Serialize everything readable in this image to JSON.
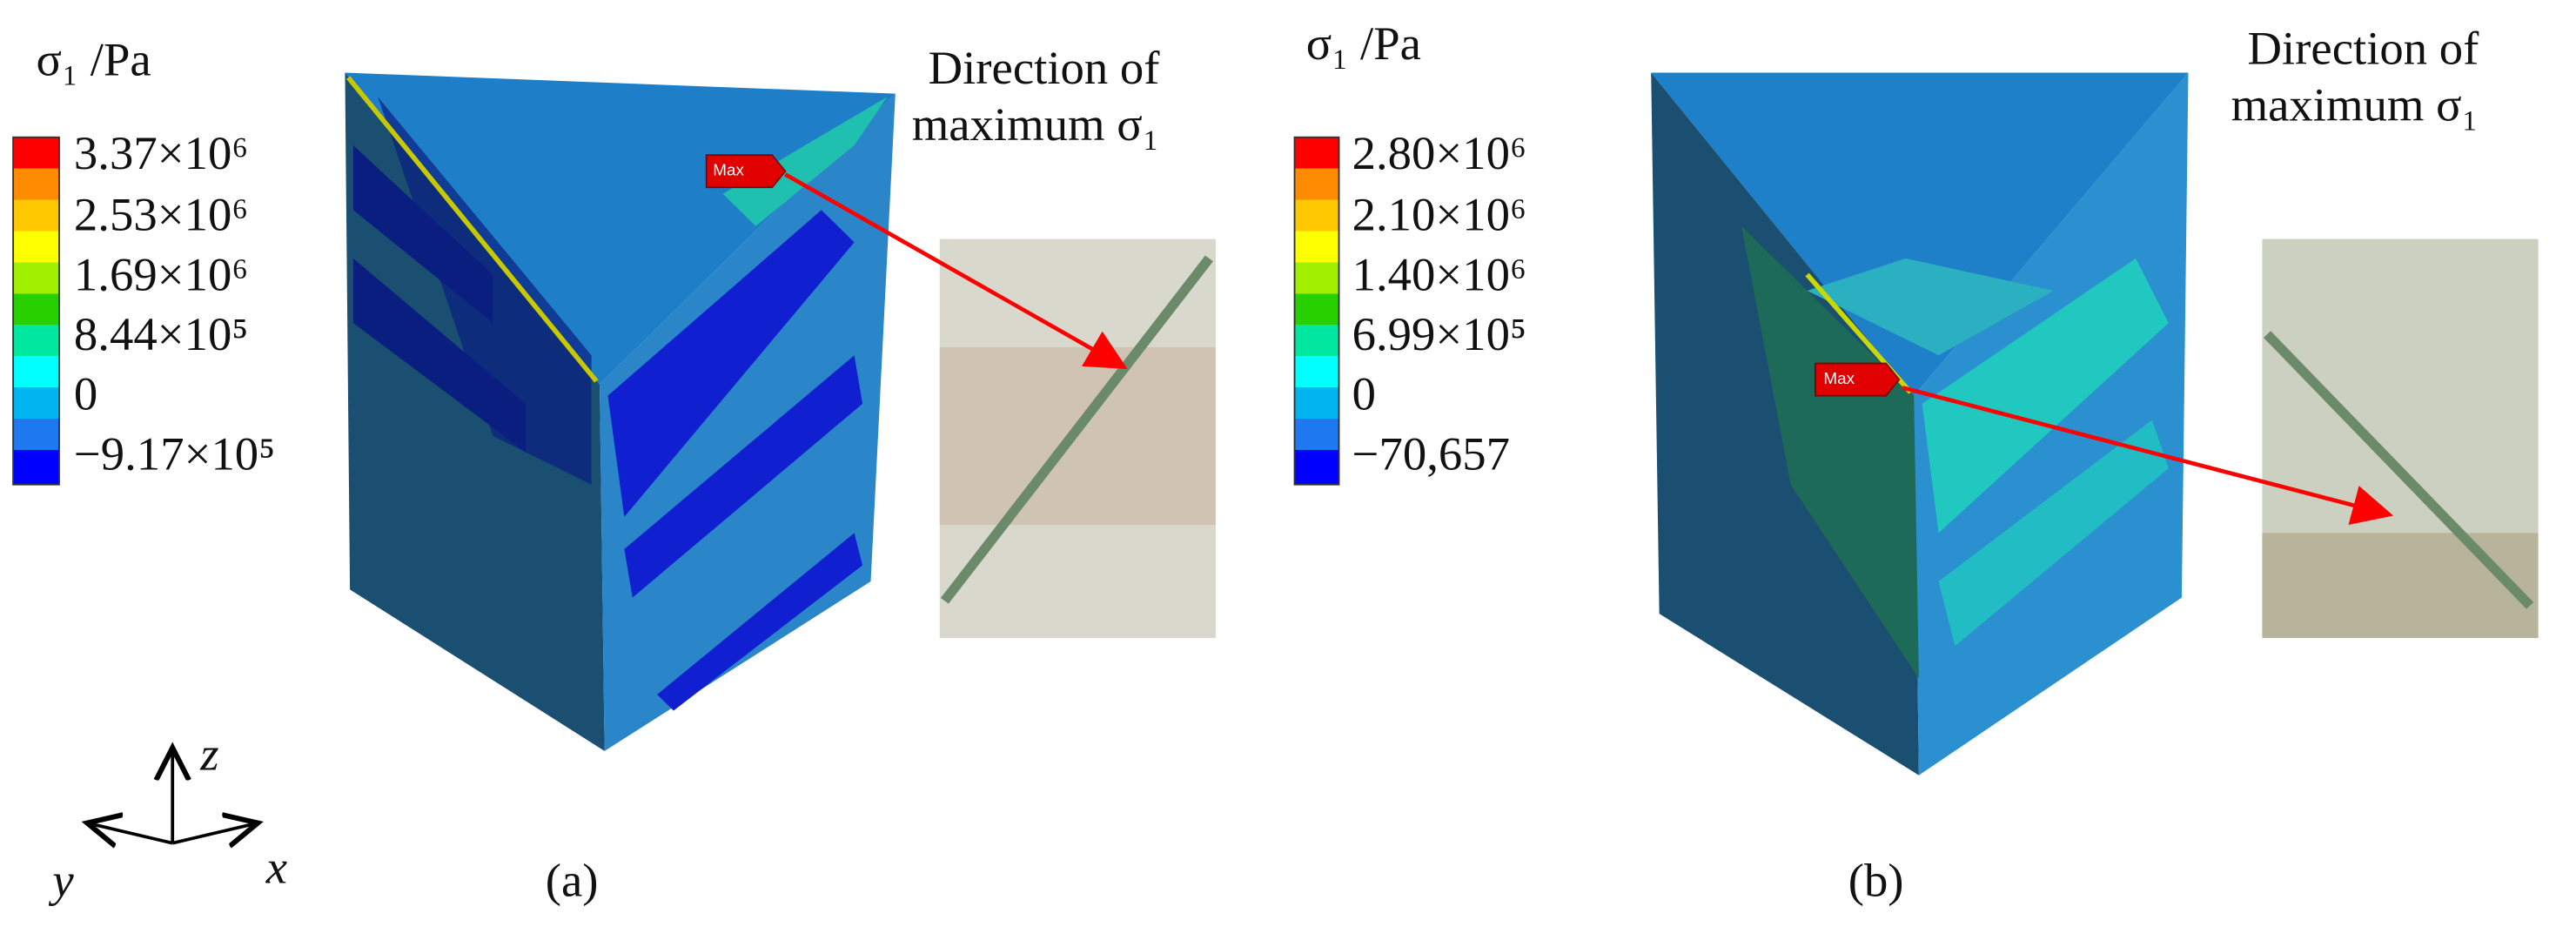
{
  "panels": [
    {
      "legend": {
        "title": "σ₁ /Pa",
        "labels": [
          "3.37×10⁶",
          "2.53×10⁶",
          "1.69×10⁶",
          "8.44×10⁵",
          "0",
          "−9.17×10⁵"
        ]
      },
      "max_label": "Max",
      "caption_lines": [
        "Direction of",
        "maximum σ₁"
      ],
      "label": "(a)"
    },
    {
      "legend": {
        "title": "σ₁ /Pa",
        "labels": [
          "2.80×10⁶",
          "2.10×10⁶",
          "1.40×10⁶",
          "6.99×10⁵",
          "0",
          "−70,657"
        ]
      },
      "max_label": "Max",
      "caption_lines": [
        "Direction of",
        "maximum σ₁"
      ],
      "label": "(b)"
    }
  ],
  "axes": {
    "z": "z",
    "y": "y",
    "x": "x"
  }
}
